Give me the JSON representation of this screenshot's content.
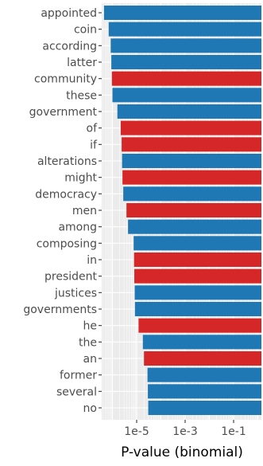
{
  "chart_data": {
    "type": "bar",
    "orientation": "horizontal",
    "title": "",
    "xlabel": "P-value (binomial)",
    "ylabel": "",
    "x_scale": "log",
    "xlim": [
      3e-07,
      3
    ],
    "x_ticks": [
      1e-05,
      0.001,
      0.1
    ],
    "x_tick_labels": [
      "1e-5",
      "1e-3",
      "1e-1"
    ],
    "grid": true,
    "legend": "none",
    "bars_extend_to": "right",
    "colors": {
      "blue": "#1f77b4",
      "red": "#d62728",
      "panel": "#ebebeb",
      "grid": "#ffffff"
    },
    "categories": [
      "appointed",
      "coin",
      "according",
      "latter",
      "community",
      "these",
      "government",
      "of",
      "if",
      "alterations",
      "might",
      "democracy",
      "men",
      "among",
      "composing",
      "in",
      "president",
      "justices",
      "governments",
      "he",
      "the",
      "an",
      "former",
      "several",
      "no"
    ],
    "values": [
      4.5e-07,
      7e-07,
      8.5e-07,
      9e-07,
      9.5e-07,
      1e-06,
      1.6e-06,
      2.2e-06,
      2.4e-06,
      2.5e-06,
      2.6e-06,
      2.8e-06,
      3.8e-06,
      4.4e-06,
      7.5e-06,
      7.8e-06,
      8e-06,
      8.3e-06,
      8.5e-06,
      1.2e-05,
      1.8e-05,
      2e-05,
      2.8e-05,
      2.9e-05,
      3e-05
    ],
    "bar_colors": [
      "blue",
      "blue",
      "blue",
      "blue",
      "red",
      "blue",
      "blue",
      "red",
      "red",
      "blue",
      "red",
      "blue",
      "red",
      "blue",
      "blue",
      "red",
      "red",
      "blue",
      "blue",
      "red",
      "blue",
      "red",
      "blue",
      "blue",
      "blue"
    ]
  }
}
